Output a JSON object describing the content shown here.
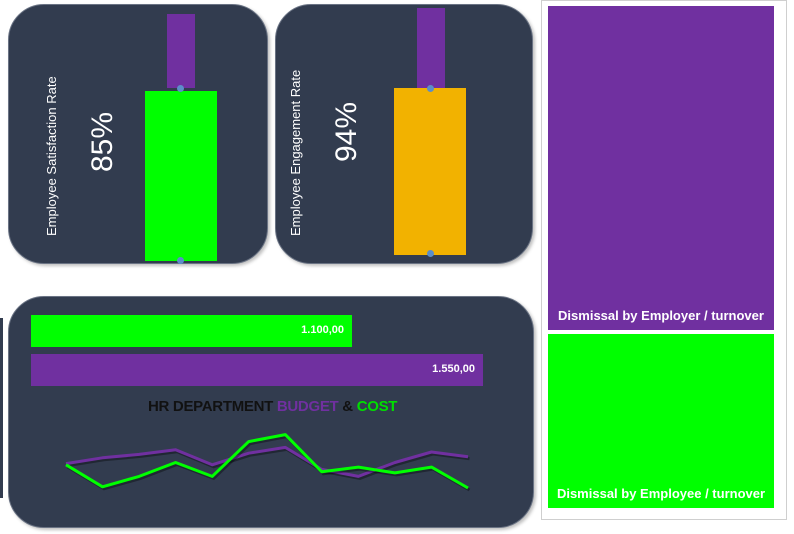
{
  "kpis": {
    "satisfaction": {
      "label": "Employee Satisfaction Rate",
      "value_text": "85%",
      "value": 0.85,
      "bar_color": "#00ff00",
      "cap_color": "#7030a0"
    },
    "engagement": {
      "label": "Employee Engagement Rate",
      "value_text": "94%",
      "value": 0.94,
      "bar_color": "#f2b200",
      "cap_color": "#7030a0"
    }
  },
  "budget": {
    "title_parts": [
      "HR DEPARTMENT ",
      "BUDGET",
      " & ",
      "COST"
    ],
    "title_colors": [
      "#111111",
      "#7030a0",
      "#111111",
      "#00dd00"
    ]
  },
  "treemap": {
    "blocks": [
      {
        "label": "Dismissal by Employer / turnover",
        "color": "#7030a0"
      },
      {
        "label": "Dismissal by Employee / turnover",
        "color": "#00ff00"
      }
    ]
  },
  "chart_data": [
    {
      "type": "bar",
      "orientation": "horizontal",
      "categories": [
        "Cost",
        "Budget"
      ],
      "values": [
        1100.0,
        1550.0
      ],
      "value_labels": [
        "1.100,00",
        "1.550,00"
      ],
      "colors": [
        "#00ff00",
        "#7030a0"
      ],
      "title": "HR DEPARTMENT BUDGET & COST"
    },
    {
      "type": "line",
      "x": [
        1,
        2,
        3,
        4,
        5,
        6,
        7,
        8,
        9,
        10,
        11,
        12
      ],
      "series": [
        {
          "name": "BUDGET",
          "color": "#7030a0",
          "values": [
            0.42,
            0.52,
            0.58,
            0.66,
            0.4,
            0.6,
            0.7,
            0.32,
            0.2,
            0.44,
            0.62,
            0.54
          ]
        },
        {
          "name": "COST",
          "color": "#00ff00",
          "values": [
            0.4,
            0.02,
            0.2,
            0.44,
            0.2,
            0.8,
            0.92,
            0.28,
            0.36,
            0.26,
            0.36,
            0.0
          ]
        }
      ],
      "ylim": [
        0,
        1
      ]
    }
  ]
}
